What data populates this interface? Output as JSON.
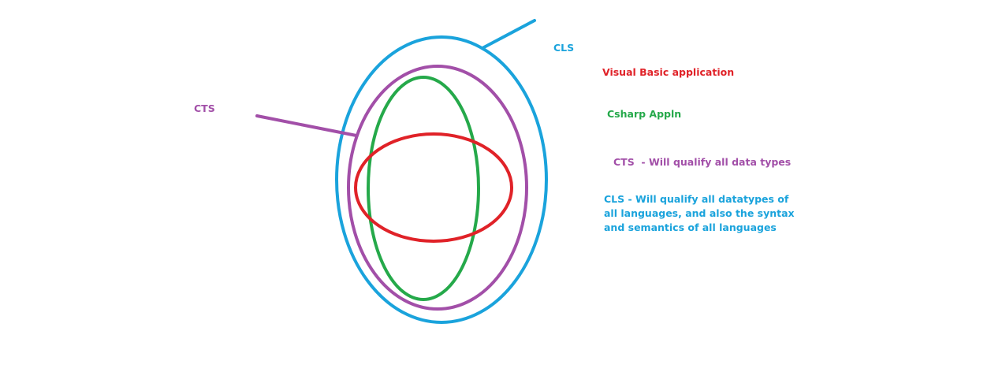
{
  "colors": {
    "cls": "#1aa3dc",
    "cts": "#a24fa8",
    "csharp": "#25a94a",
    "visual_basic": "#e02228",
    "background": "#ffffff"
  },
  "labels": {
    "cls_short": "CLS",
    "cts_short": "CTS",
    "visual_basic": "Visual Basic application",
    "csharp": "Csharp Appln",
    "cts_description": "CTS  - Will qualify all data types",
    "cls_description_lines": [
      "CLS - Will qualify all datatypes of",
      "all languages, and also the syntax",
      "and semantics of all languages"
    ]
  }
}
